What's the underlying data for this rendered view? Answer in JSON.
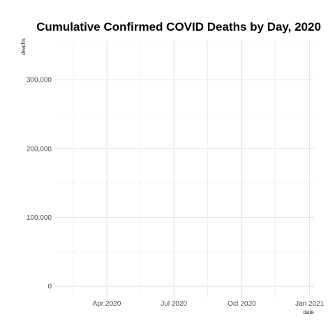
{
  "chart_data": {
    "type": "line",
    "title": "Cumulative Confirmed COVID Deaths by Day, 2020",
    "xlabel": "date",
    "ylabel": "deaths",
    "x_ticks": [
      "Apr 2020",
      "Jul 2020",
      "Oct 2020",
      "Jan 2021"
    ],
    "x_tick_dates": [
      "2020-04-01",
      "2020-07-01",
      "2020-10-01",
      "2021-01-01"
    ],
    "xlim": [
      "2020-01-22",
      "2021-01-07"
    ],
    "y_ticks": [
      "0",
      "100,000",
      "200,000",
      "300,000"
    ],
    "y_tick_values": [
      0,
      100000,
      200000,
      300000
    ],
    "ylim": [
      -15000,
      357000
    ],
    "series": [],
    "grid": true,
    "legend": "none"
  }
}
